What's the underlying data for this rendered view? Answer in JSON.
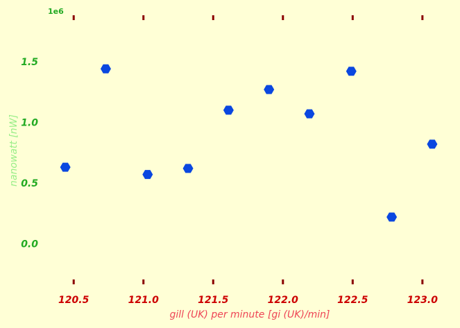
{
  "chart_data": {
    "type": "scatter",
    "title": "",
    "xlabel": "gill (UK) per minute [gi (UK)/min]",
    "ylabel": "nanowatt [nW]",
    "y_offset_label": "1e6",
    "xlim": [
      120.3,
      123.15
    ],
    "ylim": [
      -0.3,
      1.95
    ],
    "x_ticks": [
      "120.5",
      "121.0",
      "121.5",
      "122.0",
      "122.5",
      "123.0"
    ],
    "x_tick_values": [
      120.5,
      121.0,
      121.5,
      122.0,
      122.5,
      123.0
    ],
    "y_ticks": [
      "0.0",
      "0.5",
      "1.0",
      "1.5"
    ],
    "y_tick_values": [
      0.0,
      0.5,
      1.0,
      1.5
    ],
    "grid": false,
    "marker": "hexagon",
    "colors": {
      "background": "#ffffd6",
      "points": "#0a47e0",
      "x_ticks": "#cc0000",
      "x_tick_marks": "#8b0000",
      "x_label": "#ee4455",
      "y_ticks": "#22aa22",
      "y_label": "#99ee88",
      "offset": "#22aa22"
    },
    "points": [
      {
        "x": 120.44,
        "y": 0.63
      },
      {
        "x": 120.73,
        "y": 1.44
      },
      {
        "x": 121.03,
        "y": 0.57
      },
      {
        "x": 121.32,
        "y": 0.62
      },
      {
        "x": 121.61,
        "y": 1.1
      },
      {
        "x": 121.9,
        "y": 1.27
      },
      {
        "x": 122.19,
        "y": 1.07
      },
      {
        "x": 122.49,
        "y": 1.42
      },
      {
        "x": 122.78,
        "y": 0.22
      },
      {
        "x": 123.07,
        "y": 0.82
      }
    ]
  }
}
